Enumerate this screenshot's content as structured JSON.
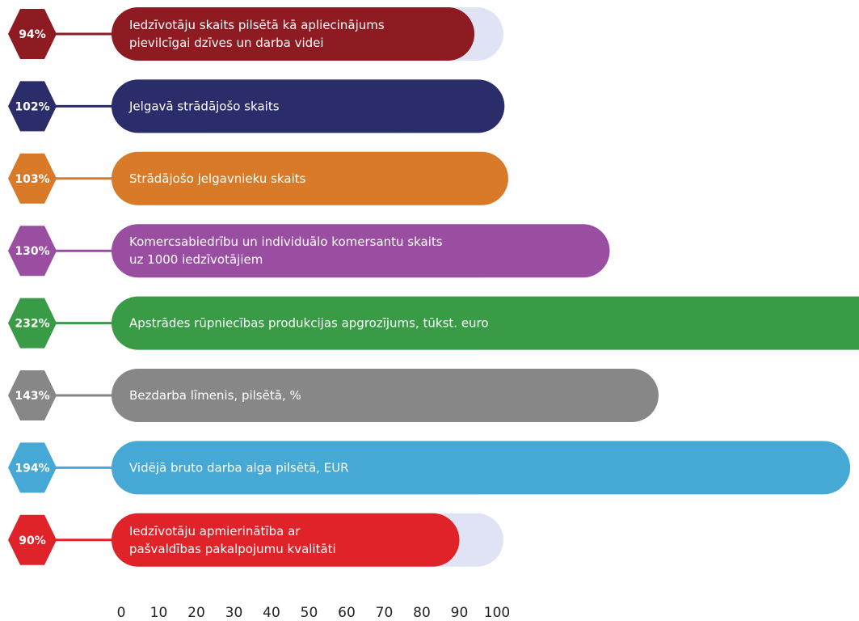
{
  "chart_data": {
    "type": "hbar",
    "categories": [
      [
        "Iedzīvotāju skaits pilsētā kā apliecinājums",
        "pievilcīgai dzīves un darba videi"
      ],
      [
        "Jelgavā strādājošo skaits"
      ],
      [
        "Strādājošo jelgavnieku skaits"
      ],
      [
        "Komercsabiedrību un individuālo komersantu skaits",
        "uz 1000 iedzīvotājiem"
      ],
      [
        "Apstrādes rūpniecības produkcijas apgrozījums, tūkst. euro"
      ],
      [
        "Bezdarba līmenis, pilsētā, %"
      ],
      [
        "Vidējā bruto darba alga pilsētā, EUR"
      ],
      [
        "Iedzīvotāju apmierinātība ar",
        "pašvaldības pakalpojumu kvalitāti"
      ]
    ],
    "values": [
      94,
      102,
      103,
      130,
      232,
      143,
      194,
      90
    ],
    "value_labels": [
      "94%",
      "102%",
      "103%",
      "130%",
      "232%",
      "143%",
      "194%",
      "90%"
    ],
    "colors": [
      "#8e1b22",
      "#2b2d6b",
      "#d97a28",
      "#9a4ea2",
      "#3a9b47",
      "#878787",
      "#45a8d5",
      "#e02229"
    ],
    "xlim": [
      0,
      100
    ],
    "xticks": [
      0,
      10,
      20,
      30,
      40,
      50,
      60,
      70,
      80,
      90,
      100
    ]
  }
}
